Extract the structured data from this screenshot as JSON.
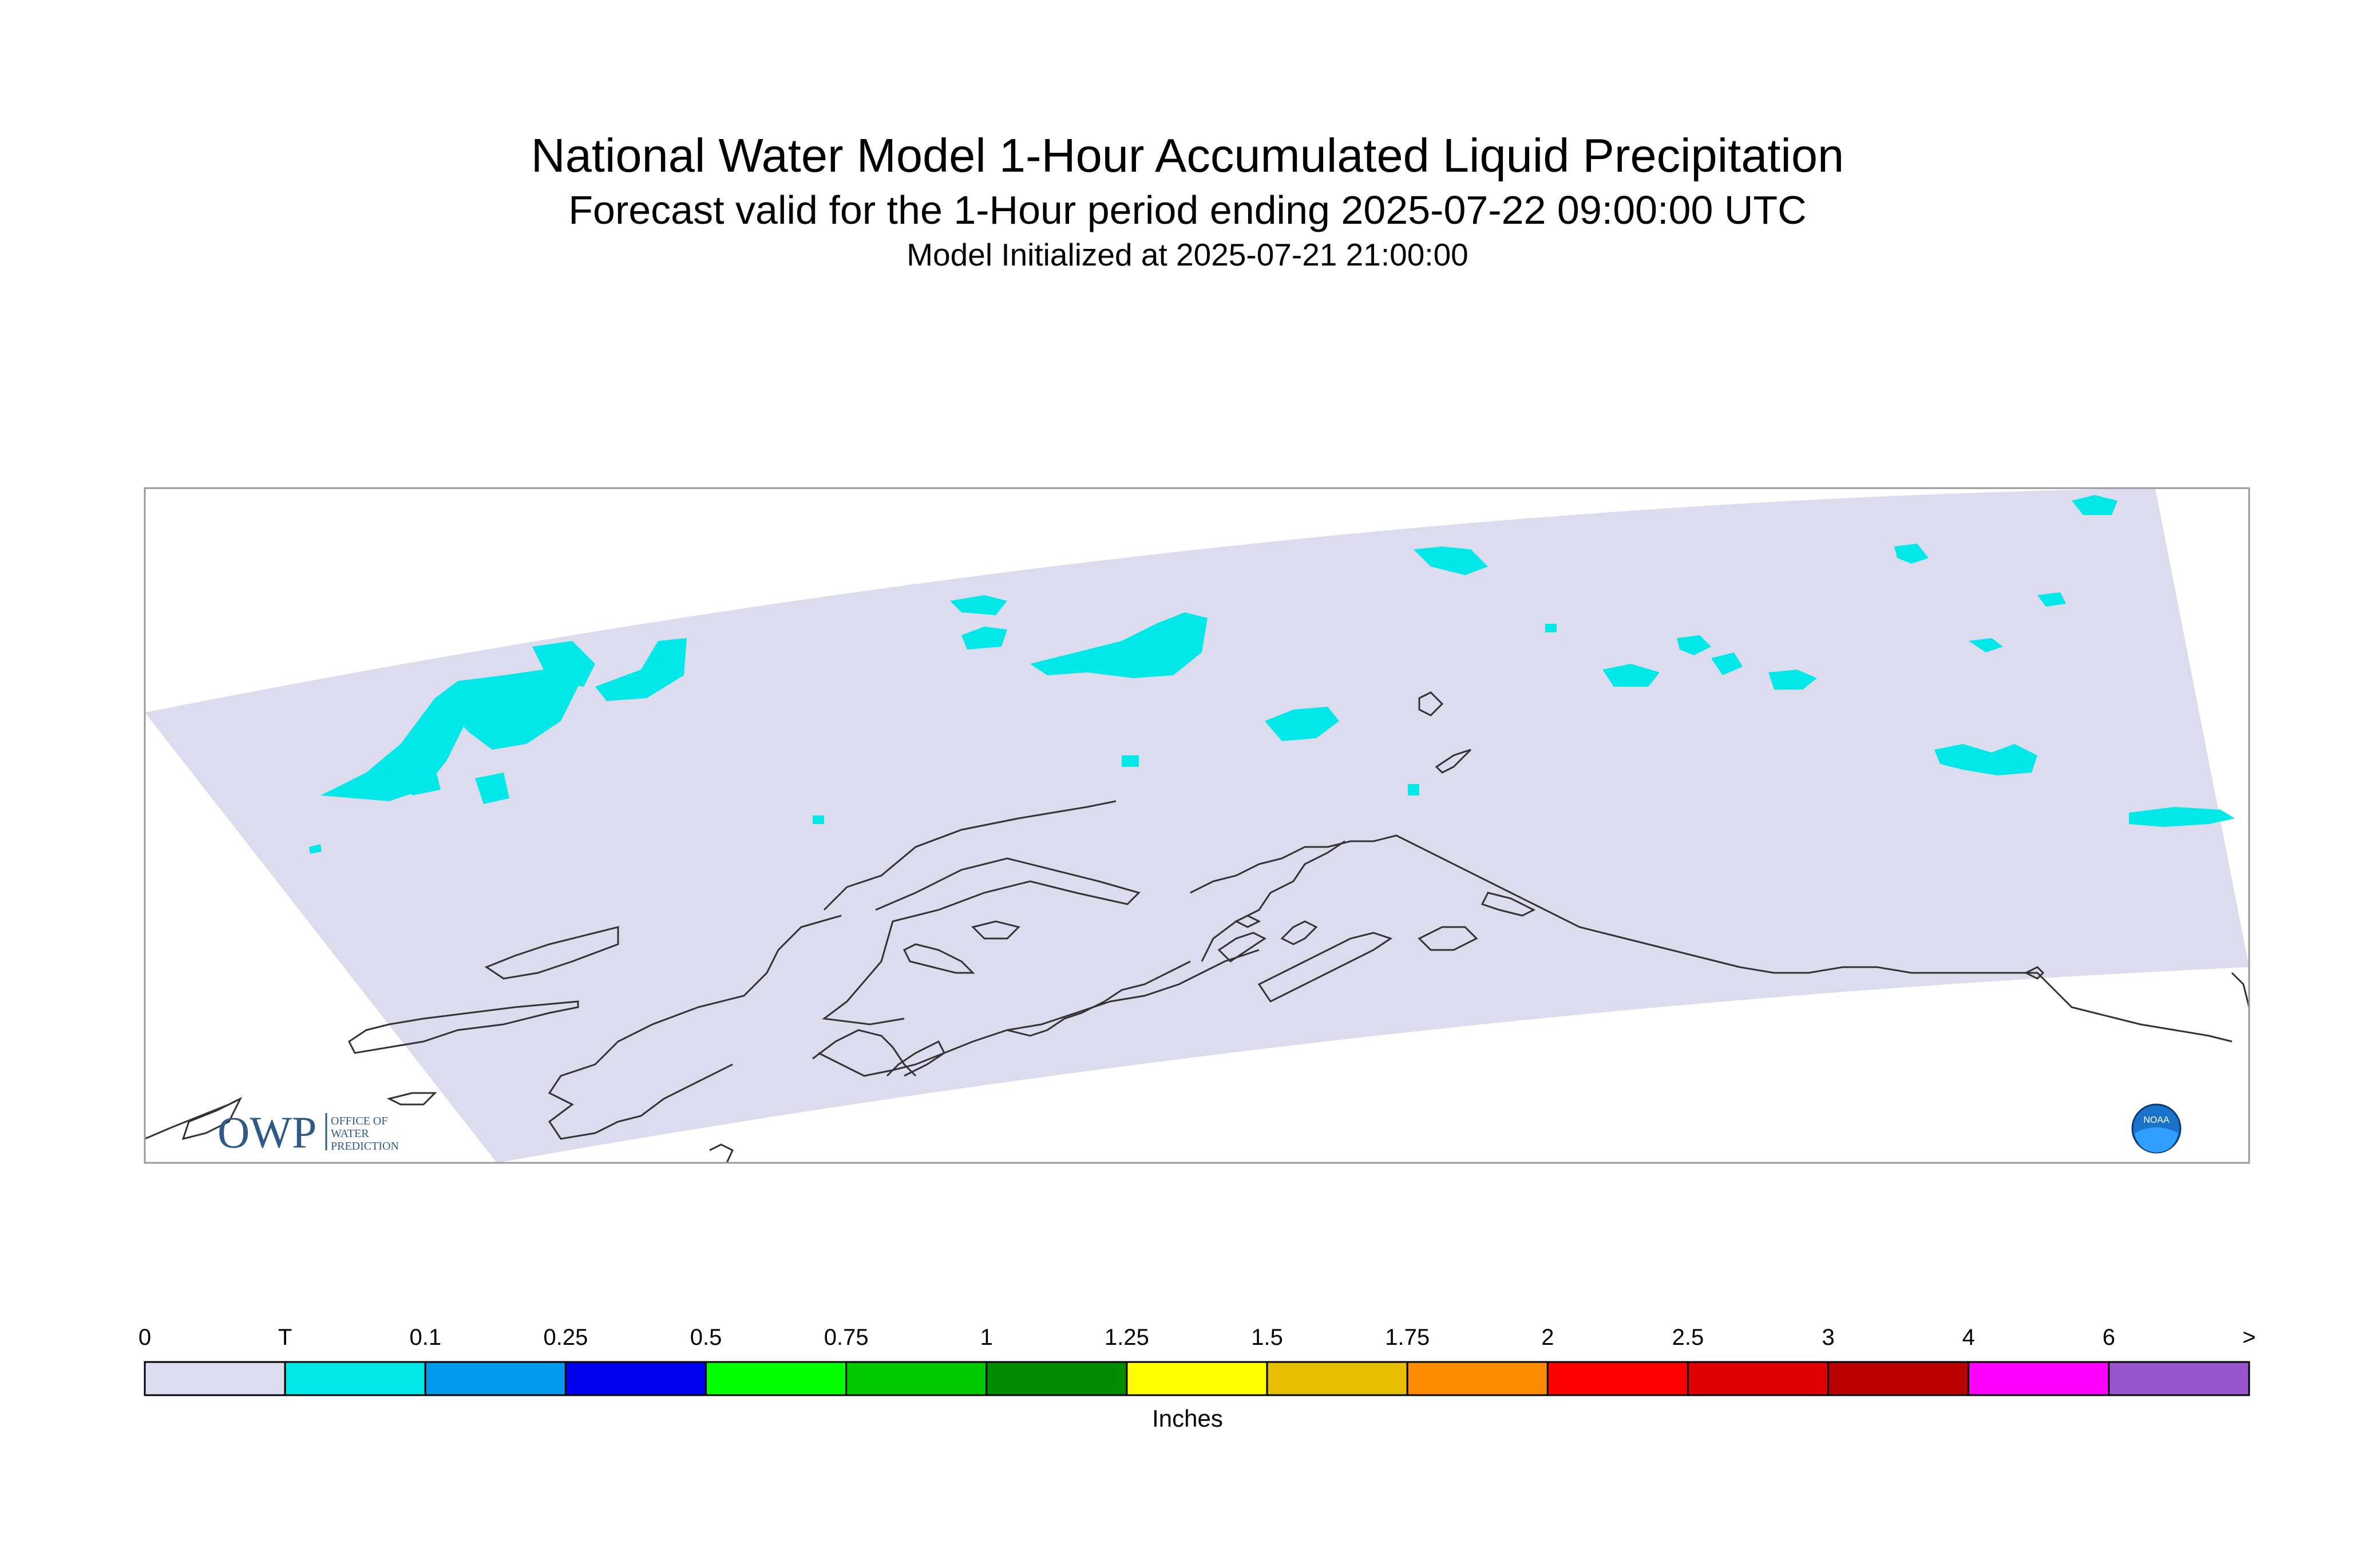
{
  "header": {
    "title": "National Water Model 1-Hour Accumulated Liquid Precipitation",
    "subtitle": "Forecast valid for the 1-Hour period ending 2025-07-22 09:00:00 UTC",
    "init": "Model Initialized at 2025-07-21 21:00:00"
  },
  "logos": {
    "owp_big": "OWP",
    "owp_small_1": "OFFICE OF",
    "owp_small_2": "WATER",
    "owp_small_3": "PREDICTION",
    "noaa": "NOAA"
  },
  "colors": {
    "domain_fill": "#dcdcee",
    "trace_fill": "#00e8e8",
    "coast": "#333333"
  },
  "legend": {
    "units": "Inches",
    "labels": [
      "0",
      "T",
      "0.1",
      "0.25",
      "0.5",
      "0.75",
      "1",
      "1.25",
      "1.5",
      "1.75",
      "2",
      "2.5",
      "3",
      "4",
      "6",
      ">"
    ],
    "bins": [
      {
        "range": "0 - T",
        "color": "#dcdcee"
      },
      {
        "range": "T - 0.1",
        "color": "#00e8e8"
      },
      {
        "range": "0.1 - 0.25",
        "color": "#0099ee"
      },
      {
        "range": "0.25 - 0.5",
        "color": "#0000ee"
      },
      {
        "range": "0.5 - 0.75",
        "color": "#00ff00"
      },
      {
        "range": "0.75 - 1",
        "color": "#00c800"
      },
      {
        "range": "1 - 1.25",
        "color": "#008c00"
      },
      {
        "range": "1.25 - 1.5",
        "color": "#ffff00"
      },
      {
        "range": "1.5 - 1.75",
        "color": "#e6c000"
      },
      {
        "range": "1.75 - 2",
        "color": "#ff8c00"
      },
      {
        "range": "2 - 2.5",
        "color": "#ff0000"
      },
      {
        "range": "2.5 - 3",
        "color": "#dd0000"
      },
      {
        "range": "3 - 4",
        "color": "#bb0000"
      },
      {
        "range": "4 - 6",
        "color": "#ff00ff"
      },
      {
        "range": "6 - >",
        "color": "#9955cc"
      }
    ]
  }
}
